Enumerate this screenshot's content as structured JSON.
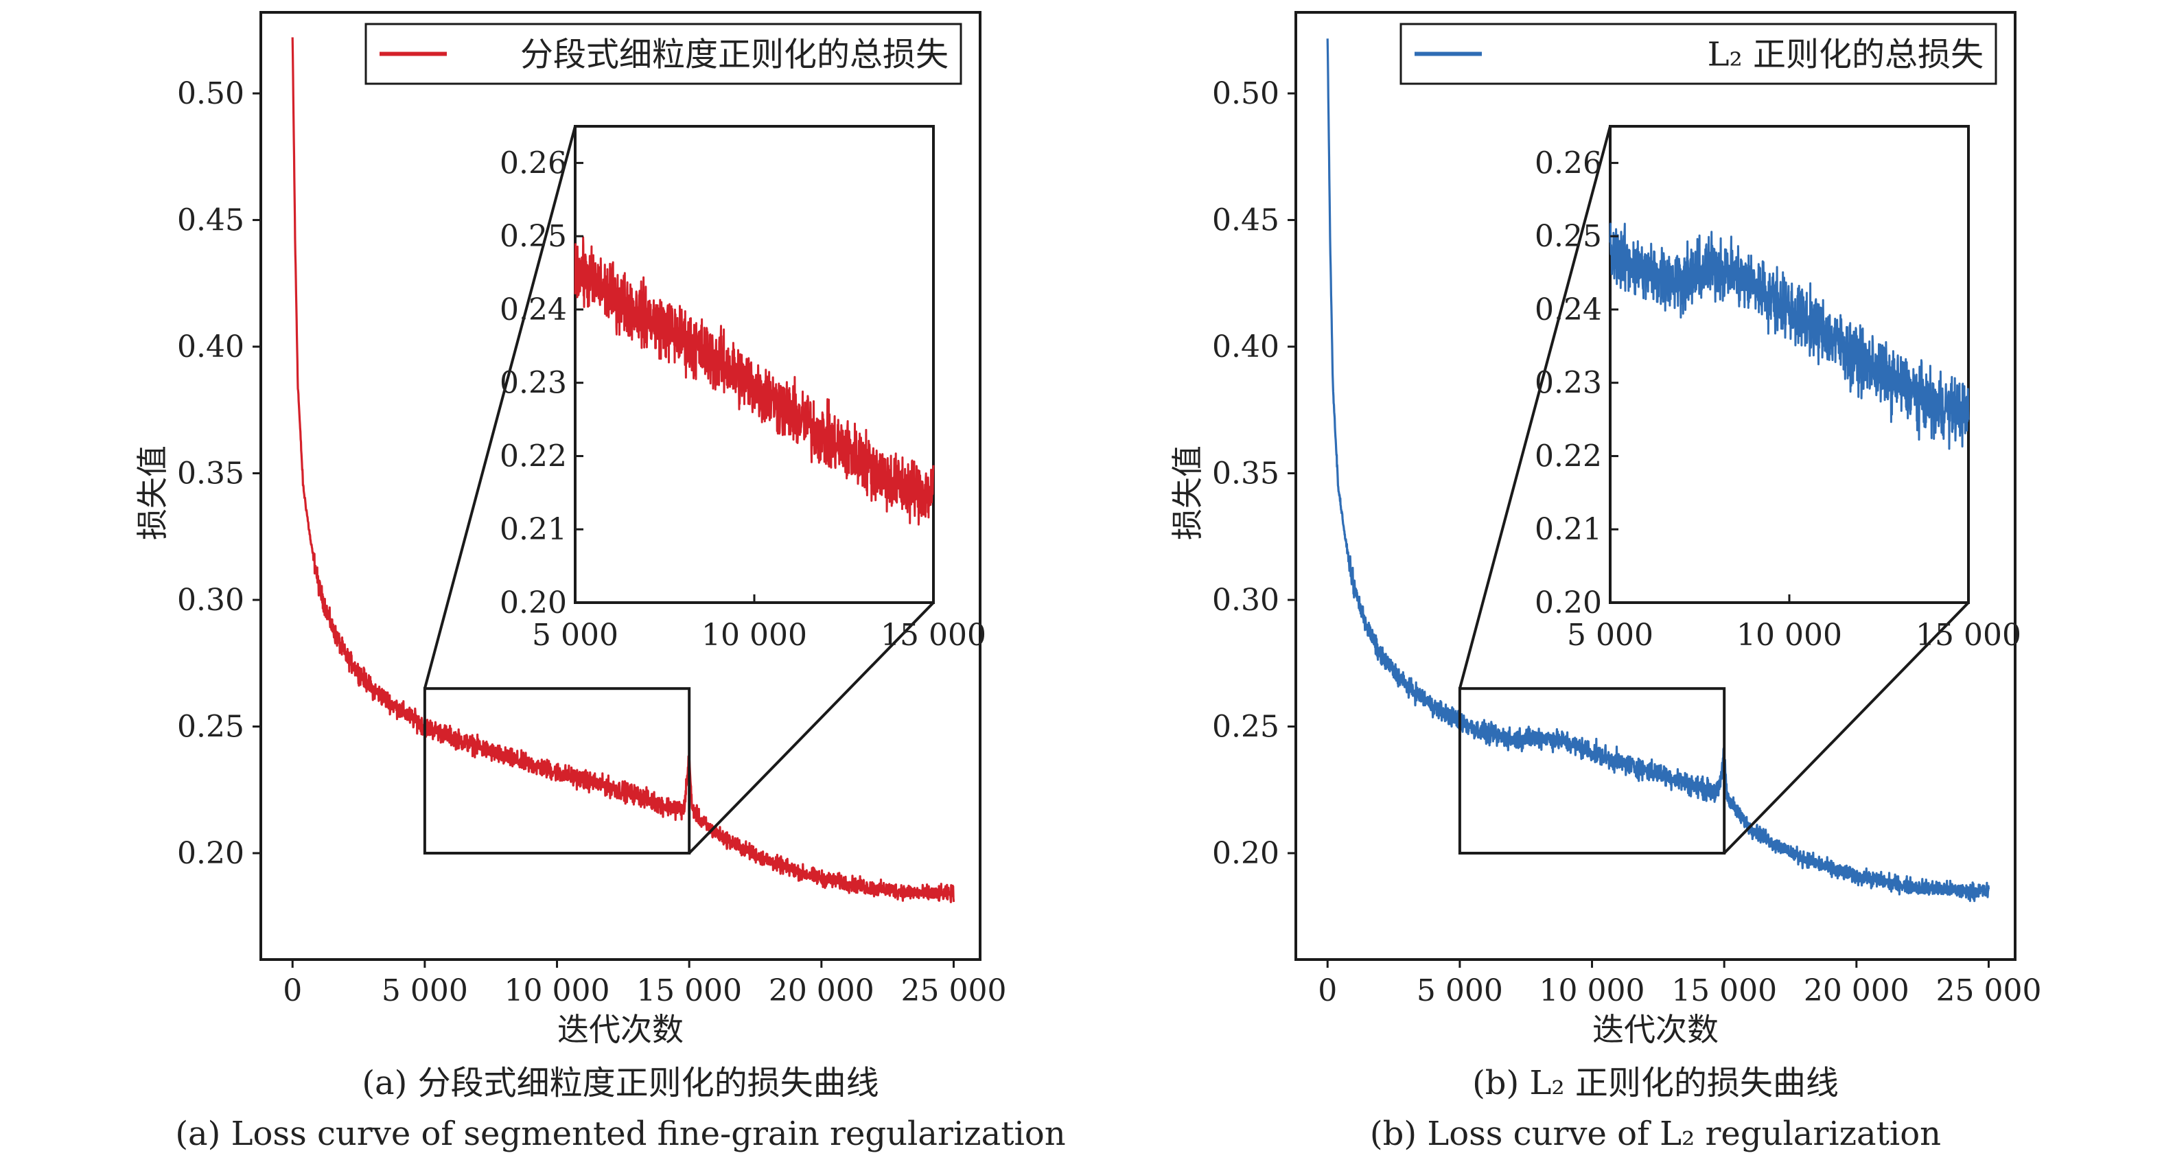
{
  "colors": {
    "left": "#d4212a",
    "right": "#2f6db5",
    "axis": "#1a1a1a"
  },
  "chart_data": [
    {
      "type": "line",
      "legend": "分段式细粒度正则化的总损失",
      "legend_position": "top-right",
      "xlabel": "迭代次数",
      "ylabel": "损失值",
      "xlim": [
        -1200,
        26000
      ],
      "ylim": [
        0.158,
        0.532
      ],
      "xticks": [
        0,
        5000,
        10000,
        15000,
        20000,
        25000
      ],
      "xtick_labels": [
        "0",
        "5 000",
        "10 000",
        "15 000",
        "20 000",
        "25 000"
      ],
      "yticks": [
        0.2,
        0.25,
        0.3,
        0.35,
        0.4,
        0.45,
        0.5
      ],
      "ytick_labels": [
        "0.20",
        "0.25",
        "0.30",
        "0.35",
        "0.40",
        "0.45",
        "0.50"
      ],
      "series": [
        {
          "name": "分段式细粒度正则化的总损失",
          "x": [
            0,
            100,
            200,
            400,
            700,
            1000,
            1500,
            2000,
            3000,
            4000,
            5000,
            6000,
            7000,
            8000,
            9000,
            10000,
            11000,
            12000,
            13000,
            14000,
            14800,
            15000,
            15100,
            15500,
            16000,
            17000,
            18000,
            19000,
            20000,
            21000,
            22000,
            23000,
            24000,
            25000
          ],
          "y": [
            0.522,
            0.44,
            0.385,
            0.345,
            0.322,
            0.305,
            0.289,
            0.278,
            0.265,
            0.257,
            0.25,
            0.246,
            0.242,
            0.238,
            0.235,
            0.232,
            0.229,
            0.226,
            0.223,
            0.219,
            0.217,
            0.238,
            0.218,
            0.212,
            0.208,
            0.202,
            0.197,
            0.193,
            0.19,
            0.188,
            0.186,
            0.185,
            0.184,
            0.184
          ]
        }
      ],
      "zoom_box": {
        "x": [
          5000,
          15000
        ],
        "y": [
          0.2,
          0.265
        ]
      },
      "inset": {
        "xlim": [
          5000,
          15000
        ],
        "ylim": [
          0.2,
          0.265
        ],
        "xticks": [
          5000,
          10000,
          15000
        ],
        "xtick_labels": [
          "5 000",
          "10 000",
          "15 000"
        ],
        "yticks": [
          0.2,
          0.21,
          0.22,
          0.23,
          0.24,
          0.25,
          0.26
        ],
        "ytick_labels": [
          "0.20",
          "0.21",
          "0.22",
          "0.23",
          "0.24",
          "0.25",
          "0.26"
        ],
        "x": [
          5000,
          6000,
          7000,
          8000,
          9000,
          10000,
          11000,
          12000,
          13000,
          14000,
          15000
        ],
        "y": [
          0.2455,
          0.242,
          0.239,
          0.236,
          0.233,
          0.2295,
          0.226,
          0.2225,
          0.2195,
          0.216,
          0.215
        ]
      },
      "caption_cn": "(a) 分段式细粒度正则化的损失曲线",
      "caption_en": "(a) Loss curve of segmented fine-grain regularization"
    },
    {
      "type": "line",
      "legend": "L₂ 正则化的总损失",
      "legend_position": "top-right",
      "xlabel": "迭代次数",
      "ylabel": "损失值",
      "xlim": [
        -1200,
        26000
      ],
      "ylim": [
        0.158,
        0.532
      ],
      "xticks": [
        0,
        5000,
        10000,
        15000,
        20000,
        25000
      ],
      "xtick_labels": [
        "0",
        "5 000",
        "10 000",
        "15 000",
        "20 000",
        "25 000"
      ],
      "yticks": [
        0.2,
        0.25,
        0.3,
        0.35,
        0.4,
        0.45,
        0.5
      ],
      "ytick_labels": [
        "0.20",
        "0.25",
        "0.30",
        "0.35",
        "0.40",
        "0.45",
        "0.50"
      ],
      "series": [
        {
          "name": "L₂ 正则化的总损失",
          "x": [
            0,
            100,
            200,
            400,
            700,
            1000,
            1500,
            2000,
            3000,
            4000,
            5000,
            6000,
            7000,
            8000,
            9000,
            10000,
            11000,
            12000,
            13000,
            14000,
            14800,
            15000,
            15100,
            15500,
            16000,
            17000,
            18000,
            19000,
            20000,
            21000,
            22000,
            23000,
            24000,
            25000
          ],
          "y": [
            0.522,
            0.44,
            0.385,
            0.345,
            0.322,
            0.305,
            0.289,
            0.278,
            0.266,
            0.258,
            0.252,
            0.247,
            0.245,
            0.246,
            0.244,
            0.24,
            0.236,
            0.233,
            0.23,
            0.226,
            0.224,
            0.24,
            0.223,
            0.216,
            0.21,
            0.203,
            0.198,
            0.194,
            0.191,
            0.189,
            0.187,
            0.186,
            0.185,
            0.185
          ]
        }
      ],
      "zoom_box": {
        "x": [
          5000,
          15000
        ],
        "y": [
          0.2,
          0.265
        ]
      },
      "inset": {
        "xlim": [
          5000,
          15000
        ],
        "ylim": [
          0.2,
          0.265
        ],
        "xticks": [
          5000,
          10000,
          15000
        ],
        "xtick_labels": [
          "5 000",
          "10 000",
          "15 000"
        ],
        "yticks": [
          0.2,
          0.21,
          0.22,
          0.23,
          0.24,
          0.25,
          0.26
        ],
        "ytick_labels": [
          "0.20",
          "0.21",
          "0.22",
          "0.23",
          "0.24",
          "0.25",
          "0.26"
        ],
        "x": [
          5000,
          6000,
          7000,
          8000,
          9000,
          10000,
          11000,
          12000,
          13000,
          14000,
          15000
        ],
        "y": [
          0.248,
          0.245,
          0.244,
          0.246,
          0.2435,
          0.24,
          0.237,
          0.233,
          0.23,
          0.227,
          0.226
        ]
      },
      "caption_cn": "(b) L₂ 正则化的损失曲线",
      "caption_en": "(b) Loss curve of L₂ regularization"
    }
  ]
}
